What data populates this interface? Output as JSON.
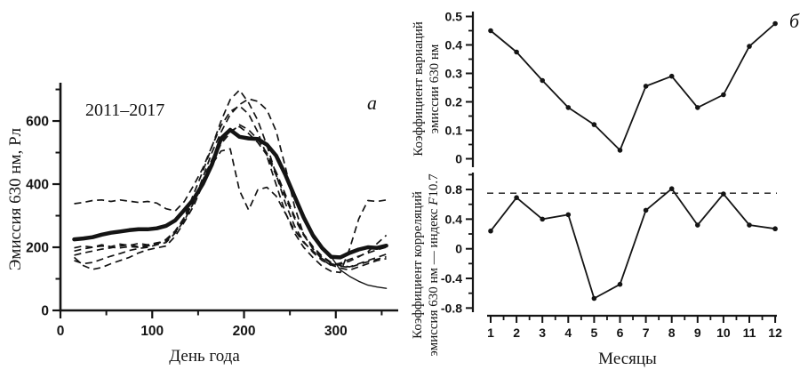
{
  "figure": {
    "background": "#ffffff",
    "ink": "#141414"
  },
  "panel_a": {
    "panel_label": "a",
    "annotation": "2011–2017",
    "xlabel": "День года",
    "ylabel": "Эмиссия 630 нм, Рл"
  },
  "panel_b": {
    "panel_label": "б",
    "xlabel": "Месяцы",
    "top": {
      "ylabel_line1": "Коэффициент вариаций",
      "ylabel_line2": "эмиссии 630 нм"
    },
    "bottom": {
      "ylabel_line1": "Коэффициент корреляций",
      "ylabel_line2_pre": "эмиссия 630 нм — индекс ",
      "ylabel_line2_f": "F",
      "ylabel_line2_post": "10.7"
    }
  },
  "chart_data": [
    {
      "id": "emission-630nm-annual-course",
      "type": "line",
      "panel": "a",
      "title": "",
      "xlabel": "День года",
      "ylabel": "Эмиссия 630 нм, Рл",
      "annotation": "2011–2017",
      "xlim": [
        0,
        368
      ],
      "ylim": [
        0,
        710
      ],
      "xticks": [
        0,
        100,
        200,
        300
      ],
      "xticks_minor": [
        50,
        150,
        250,
        350
      ],
      "yticks": [
        0,
        200,
        400,
        600
      ],
      "yticks_minor": [
        100,
        300,
        500,
        700
      ],
      "legend": "none",
      "grid": false,
      "days": [
        15,
        25,
        35,
        45,
        55,
        65,
        75,
        85,
        95,
        105,
        115,
        125,
        135,
        145,
        155,
        165,
        175,
        185,
        195,
        205,
        215,
        225,
        235,
        245,
        255,
        265,
        275,
        285,
        295,
        305,
        315,
        325,
        335,
        345,
        355
      ],
      "series": [
        {
          "name": "mean-2011-2017",
          "style": "thick-solid",
          "values": [
            225,
            228,
            232,
            240,
            246,
            250,
            254,
            257,
            257,
            260,
            268,
            285,
            318,
            352,
            400,
            462,
            545,
            572,
            550,
            545,
            543,
            525,
            490,
            430,
            362,
            295,
            238,
            198,
            170,
            168,
            182,
            193,
            200,
            198,
            205
          ]
        },
        {
          "name": "year-dashed-1",
          "style": "dashed",
          "values": [
            338,
            342,
            348,
            350,
            345,
            350,
            346,
            342,
            345,
            340,
            322,
            315,
            345,
            395,
            450,
            520,
            585,
            630,
            648,
            622,
            565,
            488,
            398,
            310,
            245,
            200,
            168,
            140,
            124,
            120,
            195,
            290,
            348,
            345,
            350
          ]
        },
        {
          "name": "year-dashed-2",
          "style": "dashed",
          "values": [
            188,
            195,
            200,
            204,
            200,
            198,
            202,
            200,
            204,
            210,
            225,
            252,
            295,
            368,
            440,
            518,
            600,
            668,
            698,
            658,
            602,
            522,
            430,
            340,
            268,
            218,
            184,
            158,
            144,
            134,
            128,
            138,
            148,
            158,
            164
          ]
        },
        {
          "name": "year-dashed-3",
          "style": "dashed",
          "values": [
            158,
            148,
            152,
            162,
            172,
            180,
            190,
            196,
            200,
            208,
            215,
            245,
            285,
            340,
            420,
            500,
            565,
            620,
            652,
            670,
            662,
            635,
            568,
            455,
            330,
            240,
            195,
            162,
            142,
            150,
            162,
            172,
            182,
            192,
            200
          ]
        },
        {
          "name": "year-dashed-4",
          "style": "dashed",
          "values": [
            175,
            182,
            188,
            194,
            198,
            204,
            208,
            202,
            206,
            212,
            220,
            248,
            288,
            345,
            408,
            462,
            505,
            512,
            380,
            318,
            382,
            390,
            362,
            308,
            255,
            215,
            188,
            164,
            148,
            140,
            136,
            146,
            154,
            162,
            170
          ]
        },
        {
          "name": "year-dashed-5",
          "style": "dashed",
          "values": [
            168,
            142,
            130,
            136,
            148,
            158,
            168,
            182,
            192,
            198,
            204,
            235,
            280,
            330,
            398,
            465,
            528,
            562,
            588,
            572,
            542,
            498,
            438,
            368,
            298,
            242,
            202,
            172,
            152,
            142,
            138,
            148,
            158,
            168,
            178
          ]
        },
        {
          "name": "year-dashed-6",
          "style": "dashed",
          "values": [
            198,
            204,
            200,
            208,
            202,
            210,
            206,
            212,
            208,
            214,
            220,
            250,
            292,
            348,
            412,
            478,
            535,
            568,
            582,
            560,
            532,
            492,
            428,
            358,
            292,
            238,
            198,
            168,
            150,
            146,
            156,
            170,
            186,
            212,
            238
          ]
        },
        {
          "name": "year-thin-solid",
          "style": "thin-solid",
          "values": [
            225,
            230,
            233,
            241,
            247,
            251,
            255,
            258,
            258,
            261,
            269,
            286,
            319,
            353,
            401,
            463,
            546,
            573,
            551,
            546,
            544,
            526,
            488,
            428,
            355,
            290,
            230,
            195,
            170,
            128,
            108,
            92,
            80,
            74,
            70
          ]
        }
      ]
    },
    {
      "id": "variation-coefficient-monthly",
      "type": "line",
      "panel": "b-top",
      "ylabel": "Коэффициент вариаций эмиссии 630 нм",
      "x": [
        1,
        2,
        3,
        4,
        5,
        6,
        7,
        8,
        9,
        10,
        11,
        12
      ],
      "values": [
        0.45,
        0.375,
        0.275,
        0.18,
        0.12,
        0.03,
        0.255,
        0.29,
        0.18,
        0.225,
        0.395,
        0.475
      ],
      "ylim": [
        0,
        0.5
      ],
      "yticks": [
        0,
        0.1,
        0.2,
        0.3,
        0.4,
        0.5
      ],
      "ytick_labels": [
        "0",
        "0.1",
        "0.2",
        "0.3",
        "0.4",
        "0.5"
      ],
      "yticks_minor": [
        0.05,
        0.15,
        0.25,
        0.35,
        0.45
      ],
      "marker": "filled-circle",
      "grid": false
    },
    {
      "id": "correlation-coefficient-monthly",
      "type": "line",
      "panel": "b-bottom",
      "ylabel": "Коэффициент корреляций эмиссия 630 нм — индекс F10.7",
      "xlabel": "Месяцы",
      "x": [
        1,
        2,
        3,
        4,
        5,
        6,
        7,
        8,
        9,
        10,
        11,
        12
      ],
      "values": [
        0.24,
        0.69,
        0.4,
        0.46,
        -0.67,
        -0.48,
        0.52,
        0.81,
        0.32,
        0.74,
        0.32,
        0.27
      ],
      "ylim": [
        -0.9,
        1.03
      ],
      "yticks": [
        -0.8,
        -0.4,
        0,
        0.4,
        0.8
      ],
      "ytick_labels": [
        "-0.8",
        "-0.4",
        "0",
        "0.4",
        "0.8"
      ],
      "yticks_minor": [
        -0.6,
        -0.2,
        0.2,
        0.6,
        1.0
      ],
      "threshold_dashed_y": 0.75,
      "xticks": [
        1,
        2,
        3,
        4,
        5,
        6,
        7,
        8,
        9,
        10,
        11,
        12
      ],
      "xtick_labels": [
        "1",
        "2",
        "3",
        "4",
        "5",
        "6",
        "7",
        "8",
        "9",
        "10",
        "11",
        "12"
      ],
      "marker": "filled-circle",
      "grid": false
    }
  ]
}
